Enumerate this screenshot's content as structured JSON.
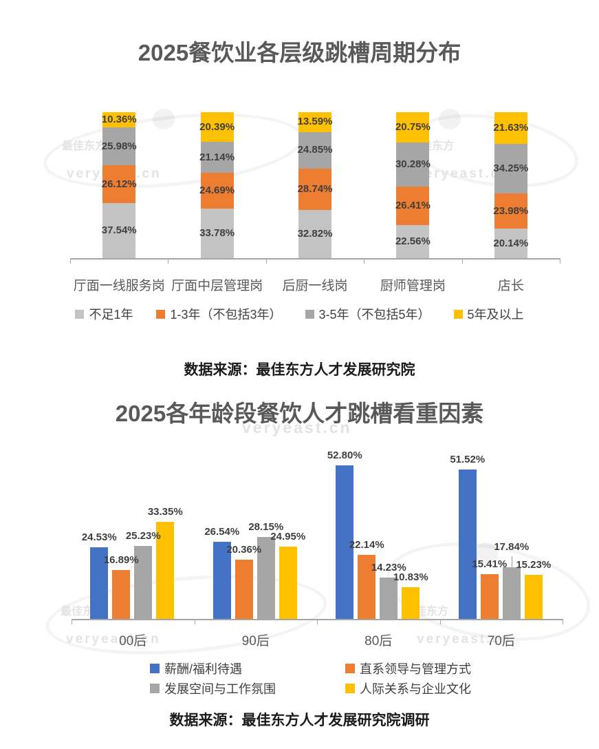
{
  "watermark": {
    "brand": "最佳东方",
    "domain": "veryeast.cn"
  },
  "chart_data": [
    {
      "type": "bar",
      "subtype": "stacked-percent",
      "title": "2025餐饮业各层级跳槽周期分布",
      "categories": [
        "厅面一线服务岗",
        "厅面中层管理岗",
        "后厨一线岗",
        "厨师管理岗",
        "店长"
      ],
      "series": [
        {
          "name": "不足1年",
          "color": "#C3C3C3",
          "values": [
            37.54,
            33.78,
            32.82,
            22.56,
            20.14
          ]
        },
        {
          "name": "1-3年（不包括3年）",
          "color": "#ED7D31",
          "values": [
            26.12,
            24.69,
            28.74,
            26.41,
            23.98
          ]
        },
        {
          "name": "3-5年（不包括5年）",
          "color": "#A6A6A6",
          "values": [
            25.98,
            21.14,
            24.85,
            30.28,
            34.25
          ]
        },
        {
          "name": "5年及以上",
          "color": "#FFC000",
          "values": [
            10.36,
            20.39,
            13.59,
            20.75,
            21.63
          ]
        }
      ],
      "unit": "%",
      "ylim": [
        0,
        100
      ],
      "grid": false,
      "legend_position": "bottom",
      "source": "数据来源：最佳东方人才发展研究院"
    },
    {
      "type": "bar",
      "subtype": "grouped",
      "title": "2025各年龄段餐饮人才跳槽看重因素",
      "categories": [
        "00后",
        "90后",
        "80后",
        "70后"
      ],
      "series": [
        {
          "name": "薪酬/福利待遇",
          "color": "#4472C4",
          "values": [
            24.53,
            26.54,
            52.8,
            51.52
          ]
        },
        {
          "name": "直系领导与管理方式",
          "color": "#ED7D31",
          "values": [
            16.89,
            20.36,
            22.14,
            15.41
          ]
        },
        {
          "name": "发展空间与工作氛围",
          "color": "#A6A6A6",
          "values": [
            25.23,
            28.15,
            14.23,
            17.84
          ]
        },
        {
          "name": "人际关系与企业文化",
          "color": "#FFC000",
          "values": [
            33.35,
            24.95,
            10.83,
            15.23
          ]
        }
      ],
      "unit": "%",
      "ylim": [
        0,
        60
      ],
      "grid": false,
      "legend_position": "bottom",
      "source": "数据来源：最佳东方人才发展研究院调研"
    }
  ]
}
